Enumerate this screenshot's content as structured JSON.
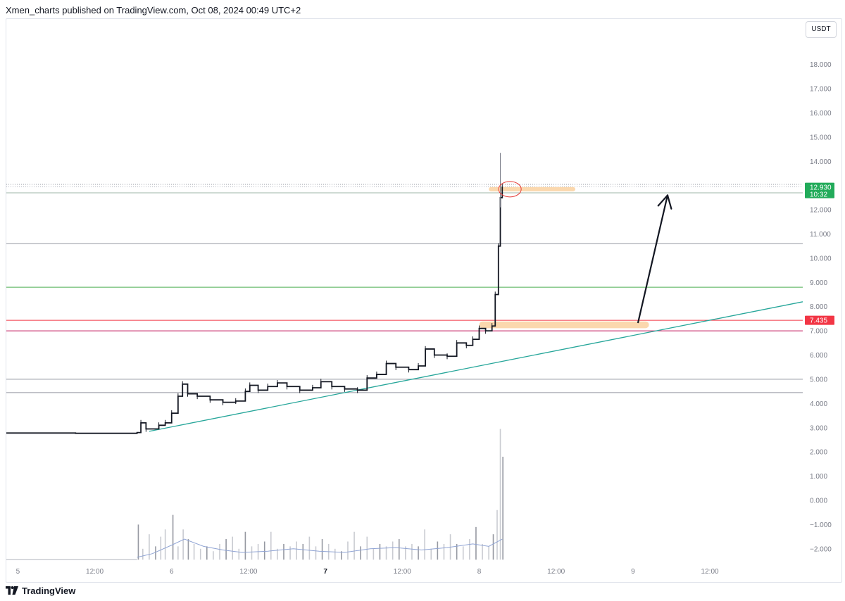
{
  "header": {
    "text": "Xmen_charts published on TradingView.com, Oct 08, 2024 00:49 UTC+2"
  },
  "footer": {
    "brand": "TradingView",
    "logo_icon": "tradingview-logo-icon"
  },
  "chart_data": {
    "type": "candlestick",
    "unit": "USDT",
    "y_ticks": [
      "18.000",
      "17.000",
      "16.000",
      "15.000",
      "14.000",
      "12.000",
      "11.000",
      "10.000",
      "9.000",
      "8.000",
      "7.000",
      "6.000",
      "5.000",
      "4.000",
      "3.000",
      "2.000",
      "1.000",
      "0.000",
      "−1.000",
      "−2.000"
    ],
    "y_tick_values": [
      18,
      17,
      16,
      15,
      14,
      12,
      11,
      10,
      9,
      8,
      7,
      6,
      5,
      4,
      3,
      2,
      1,
      0,
      -1,
      -2
    ],
    "ylim": [
      -2.5,
      19.5
    ],
    "x_ticks": [
      {
        "label": "5",
        "t": 1,
        "bold": false
      },
      {
        "label": "12:00",
        "t": 13,
        "bold": false
      },
      {
        "label": "6",
        "t": 25,
        "bold": false
      },
      {
        "label": "12:00",
        "t": 37,
        "bold": false
      },
      {
        "label": "7",
        "t": 49,
        "bold": true
      },
      {
        "label": "12:00",
        "t": 61,
        "bold": false
      },
      {
        "label": "8",
        "t": 73,
        "bold": false
      },
      {
        "label": "12:00",
        "t": 85,
        "bold": false
      },
      {
        "label": "9",
        "t": 97,
        "bold": false
      },
      {
        "label": "12:00",
        "t": 109,
        "bold": false
      }
    ],
    "xlim": [
      -0.8,
      123.5
    ],
    "price_path": [
      [
        -0.8,
        2.78
      ],
      [
        10,
        2.77
      ],
      [
        19.6,
        2.8
      ],
      [
        20.2,
        3.2
      ],
      [
        21,
        2.95
      ],
      [
        23,
        3.1
      ],
      [
        24,
        3.2
      ],
      [
        25,
        3.6
      ],
      [
        26,
        4.3
      ],
      [
        26.7,
        4.8
      ],
      [
        27.5,
        4.4
      ],
      [
        29,
        4.3
      ],
      [
        31,
        4.15
      ],
      [
        33,
        4.05
      ],
      [
        35,
        4.1
      ],
      [
        36.5,
        4.5
      ],
      [
        37.2,
        4.75
      ],
      [
        38.5,
        4.55
      ],
      [
        40,
        4.7
      ],
      [
        41.5,
        4.85
      ],
      [
        43,
        4.7
      ],
      [
        45,
        4.55
      ],
      [
        47,
        4.65
      ],
      [
        48.3,
        4.9
      ],
      [
        50,
        4.7
      ],
      [
        52,
        4.6
      ],
      [
        54,
        4.55
      ],
      [
        55.5,
        5.05
      ],
      [
        57,
        5.2
      ],
      [
        58.5,
        5.65
      ],
      [
        60,
        5.5
      ],
      [
        62,
        5.4
      ],
      [
        63.5,
        5.55
      ],
      [
        64.6,
        6.25
      ],
      [
        66,
        6.0
      ],
      [
        68,
        5.95
      ],
      [
        69.5,
        6.5
      ],
      [
        71,
        6.4
      ],
      [
        72,
        6.65
      ],
      [
        73,
        7.1
      ],
      [
        74,
        7.0
      ],
      [
        75,
        7.2
      ],
      [
        75.5,
        8.5
      ],
      [
        76,
        10.5
      ],
      [
        76.3,
        12.5
      ],
      [
        76.6,
        12.95
      ]
    ],
    "spike_wick": {
      "t": 76.3,
      "low": 12.1,
      "high": 14.35
    },
    "horizontal_levels": [
      {
        "value": 13.05,
        "color": "#9598a1",
        "style": "dotted"
      },
      {
        "value": 12.95,
        "color": "#b2b5be",
        "style": "dotted"
      },
      {
        "value": 12.7,
        "color": "#9fb7a8",
        "style": "solid"
      },
      {
        "value": 10.6,
        "color": "#9598a1",
        "style": "solid"
      },
      {
        "value": 8.8,
        "color": "#4caf50",
        "style": "solid"
      },
      {
        "value": 7.435,
        "color": "#f23645",
        "style": "solid"
      },
      {
        "value": 7.0,
        "color": "#c2185b",
        "style": "solid"
      },
      {
        "value": 5.0,
        "color": "#9598a1",
        "style": "solid"
      },
      {
        "value": 4.45,
        "color": "#9598a1",
        "style": "solid"
      }
    ],
    "trendline": {
      "color": "#26a69a",
      "from": [
        21.5,
        2.85
      ],
      "to": [
        123.5,
        8.2
      ]
    },
    "price_labels": [
      {
        "value": 12.93,
        "text": "12.930",
        "subtext": "10:32",
        "bg": "#22ab5a"
      },
      {
        "value": 7.435,
        "text": "7.435",
        "bg": "#f23645"
      }
    ],
    "highlight_zones": [
      {
        "color": "#f7a94b",
        "from_t": 74.5,
        "to_t": 88,
        "value": 12.85,
        "thickness": 0.18
      },
      {
        "color": "#f7a94b",
        "from_t": 73,
        "to_t": 99.5,
        "value": 7.25,
        "thickness": 0.28
      }
    ],
    "circle_annotation": {
      "t": 77.8,
      "value": 12.85,
      "color": "#e53935"
    },
    "arrow_annotation": {
      "from": [
        97.8,
        7.35
      ],
      "to": [
        102.4,
        12.6
      ],
      "color": "#131722"
    },
    "volume": {
      "baseline": -2.45,
      "bars": [
        [
          19.8,
          -1.0
        ],
        [
          20.5,
          -2.0
        ],
        [
          21.5,
          -1.4
        ],
        [
          22.5,
          -1.9
        ],
        [
          23.3,
          -1.5
        ],
        [
          24,
          -1.2
        ],
        [
          25.2,
          -0.6
        ],
        [
          26,
          -1.9
        ],
        [
          26.8,
          -1.2
        ],
        [
          27.6,
          -1.6
        ],
        [
          28.5,
          -1.8
        ],
        [
          29.5,
          -2.0
        ],
        [
          30.5,
          -1.9
        ],
        [
          31.5,
          -2.1
        ],
        [
          32.5,
          -1.8
        ],
        [
          33.5,
          -1.6
        ],
        [
          34.5,
          -1.5
        ],
        [
          35.5,
          -2.0
        ],
        [
          36.5,
          -1.3
        ],
        [
          37.5,
          -1.9
        ],
        [
          38.5,
          -1.8
        ],
        [
          39.5,
          -1.7
        ],
        [
          40.5,
          -1.3
        ],
        [
          41.5,
          -2.0
        ],
        [
          42.5,
          -1.8
        ],
        [
          43.5,
          -1.9
        ],
        [
          44.5,
          -1.7
        ],
        [
          45.5,
          -1.8
        ],
        [
          46.5,
          -1.5
        ],
        [
          47.5,
          -1.9
        ],
        [
          48.5,
          -1.6
        ],
        [
          49.5,
          -1.8
        ],
        [
          50.5,
          -2.0
        ],
        [
          51.5,
          -2.1
        ],
        [
          52.5,
          -1.7
        ],
        [
          53.5,
          -1.3
        ],
        [
          54.5,
          -1.9
        ],
        [
          55.5,
          -1.5
        ],
        [
          56.5,
          -2.0
        ],
        [
          57.5,
          -1.8
        ],
        [
          58.5,
          -1.9
        ],
        [
          59.5,
          -1.7
        ],
        [
          60.5,
          -1.6
        ],
        [
          61.5,
          -1.9
        ],
        [
          62.5,
          -1.8
        ],
        [
          63.5,
          -1.9
        ],
        [
          64.5,
          -1.2
        ],
        [
          65.5,
          -2.0
        ],
        [
          66.5,
          -1.7
        ],
        [
          67.5,
          -1.8
        ],
        [
          68.5,
          -1.4
        ],
        [
          69.5,
          -1.8
        ],
        [
          70.5,
          -1.9
        ],
        [
          71.5,
          -1.6
        ],
        [
          72.5,
          -1.1
        ],
        [
          73.5,
          -1.8
        ],
        [
          74.5,
          -1.9
        ],
        [
          75.2,
          -1.4
        ],
        [
          75.8,
          -0.4
        ],
        [
          76.3,
          2.95
        ],
        [
          76.7,
          1.8
        ]
      ],
      "ma": [
        [
          19.6,
          -2.35
        ],
        [
          22,
          -2.2
        ],
        [
          25,
          -1.85
        ],
        [
          27,
          -1.6
        ],
        [
          30,
          -1.9
        ],
        [
          33,
          -2.05
        ],
        [
          36,
          -2.15
        ],
        [
          40,
          -2.1
        ],
        [
          44,
          -2.0
        ],
        [
          48,
          -2.1
        ],
        [
          52,
          -2.15
        ],
        [
          56,
          -2.0
        ],
        [
          60,
          -1.95
        ],
        [
          64,
          -2.05
        ],
        [
          68,
          -1.95
        ],
        [
          72,
          -1.8
        ],
        [
          74.5,
          -1.9
        ],
        [
          76.6,
          -1.6
        ]
      ]
    }
  }
}
